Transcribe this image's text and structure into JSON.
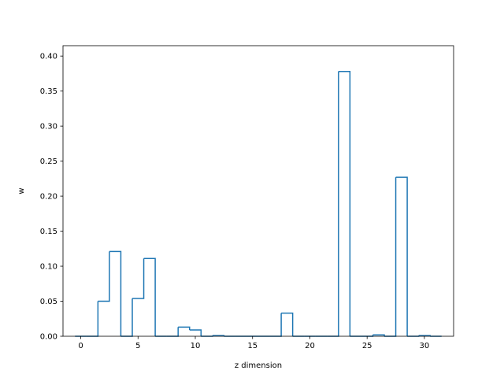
{
  "chart_data": {
    "type": "bar",
    "style": "step-histogram-outline",
    "title": "",
    "xlabel": "z dimension",
    "ylabel": "w",
    "xlim": [
      -1.55,
      32.55
    ],
    "ylim": [
      0,
      0.4148
    ],
    "x": [
      0,
      1,
      2,
      3,
      4,
      5,
      6,
      7,
      8,
      9,
      10,
      11,
      12,
      13,
      14,
      15,
      16,
      17,
      18,
      19,
      20,
      21,
      22,
      23,
      24,
      25,
      26,
      27,
      28,
      29,
      30,
      31
    ],
    "values": [
      0,
      0,
      0.05,
      0.121,
      0,
      0.054,
      0.111,
      0,
      0,
      0.013,
      0.009,
      0,
      0.001,
      0,
      0,
      0,
      0,
      0,
      0.033,
      0,
      0,
      0,
      0,
      0.378,
      0,
      0,
      0.002,
      0,
      0.227,
      0,
      0.001,
      0
    ],
    "x_ticks": [
      0,
      5,
      10,
      15,
      20,
      25,
      30
    ],
    "y_ticks": [
      0,
      0.05,
      0.1,
      0.15,
      0.2,
      0.25,
      0.3,
      0.35,
      0.4
    ],
    "x_tick_labels": [
      "0",
      "5",
      "10",
      "15",
      "20",
      "25",
      "30"
    ],
    "y_tick_labels": [
      "0.00",
      "0.05",
      "0.10",
      "0.15",
      "0.20",
      "0.25",
      "0.30",
      "0.35",
      "0.40"
    ],
    "grid": false,
    "legend": "none",
    "colors": {
      "line": "#1f77b4",
      "axes": "#000000",
      "background": "#ffffff"
    }
  }
}
